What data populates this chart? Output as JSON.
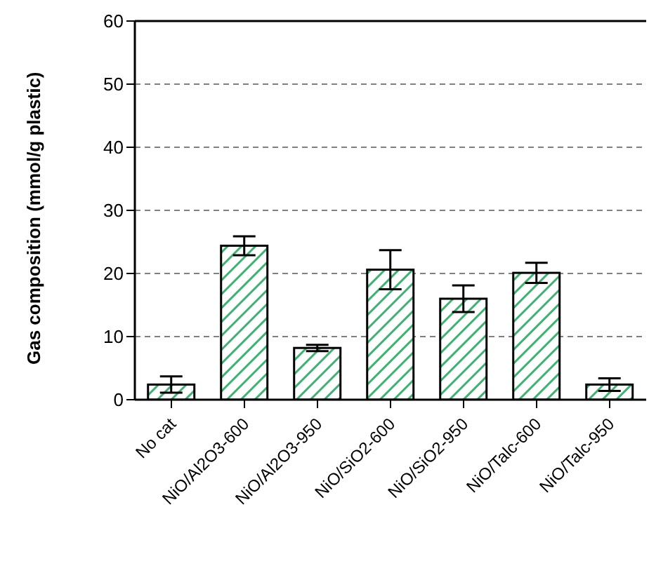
{
  "chart_data": {
    "type": "bar",
    "ylabel": "Gas composition (mmol/g plastic)",
    "categories": [
      "No cat",
      "NiO/Al2O3-600",
      "NiO/Al2O3-950",
      "NiO/SiO2-600",
      "NiO/SiO2-950",
      "NiO/Talc-600",
      "NiO/Talc-950"
    ],
    "values": [
      2.4,
      24.4,
      8.2,
      20.6,
      16.0,
      20.1,
      2.4
    ],
    "errors": [
      1.3,
      1.5,
      0.5,
      3.1,
      2.1,
      1.6,
      1.0
    ],
    "color": "#3cb371",
    "ylim": [
      0,
      60
    ],
    "yticks": [
      0,
      10,
      20,
      30,
      40,
      50,
      60
    ],
    "grid": "y",
    "legend": false
  }
}
